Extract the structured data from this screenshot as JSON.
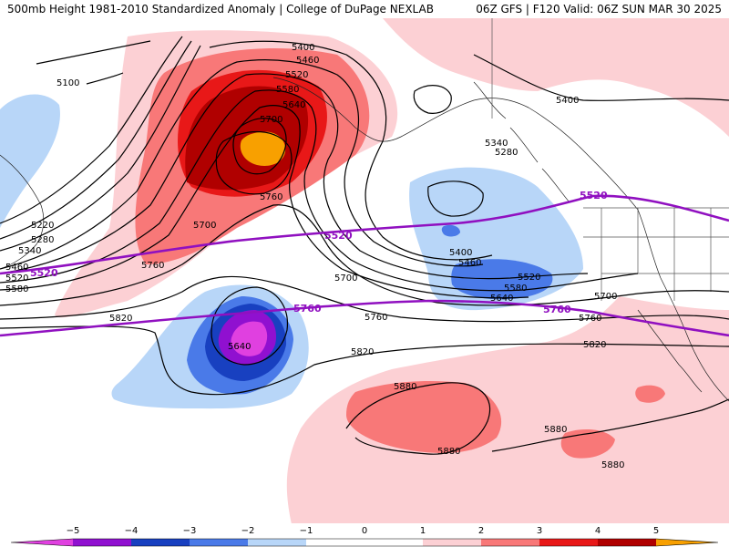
{
  "header": {
    "left_title": "500mb Height 1981-2010 Standardized Anomaly | College of DuPage NEXLAB",
    "right_title": "06Z GFS | F120 Valid: 06Z SUN MAR 30 2025"
  },
  "colors": {
    "neg5": "#e040e0",
    "neg4": "#9010d0",
    "neg3": "#1840c0",
    "neg2": "#4a7ae8",
    "neg1": "#b8d6f8",
    "pos1": "#fcd0d4",
    "pos2": "#f87878",
    "pos3": "#e81818",
    "pos4": "#b00000",
    "pos5": "#f8a000",
    "contour": "#000000",
    "standard_line": "#9010c0",
    "coast": "#222222",
    "border": "#555555"
  },
  "contour_labels": {
    "c5100": "5100",
    "c5220": "5220",
    "c5280": "5280",
    "c5340": "5340",
    "c5400": "5400",
    "c5460": "5460",
    "c5520": "5520",
    "c5580": "5580",
    "c5640": "5640",
    "c5700": "5700",
    "c5760": "5760",
    "c5820": "5820",
    "c5880": "5880"
  },
  "standard_lines": {
    "a": "5520",
    "b": "5760"
  },
  "colorbar": {
    "ticks": [
      "−5",
      "−4",
      "−3",
      "−2",
      "−1",
      "0",
      "1",
      "2",
      "3",
      "4",
      "5"
    ]
  }
}
